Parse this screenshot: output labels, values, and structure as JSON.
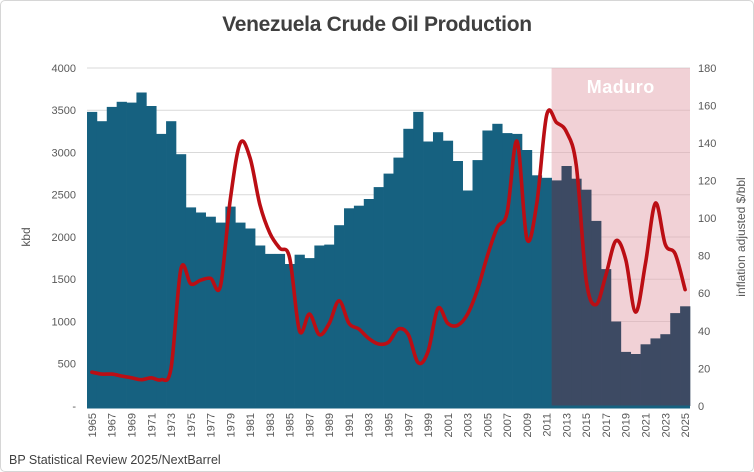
{
  "chart_data": {
    "type": "combo-bar-line",
    "title": "Venezuela Crude Oil Production",
    "source_note": "BP Statistical Review 2025/NextBarrel",
    "x": [
      1965,
      1966,
      1967,
      1968,
      1969,
      1970,
      1971,
      1972,
      1973,
      1974,
      1975,
      1976,
      1977,
      1978,
      1979,
      1980,
      1981,
      1982,
      1983,
      1984,
      1985,
      1986,
      1987,
      1988,
      1989,
      1990,
      1991,
      1992,
      1993,
      1994,
      1995,
      1996,
      1997,
      1998,
      1999,
      2000,
      2001,
      2002,
      2003,
      2004,
      2005,
      2006,
      2007,
      2008,
      2009,
      2010,
      2011,
      2012,
      2013,
      2014,
      2015,
      2016,
      2017,
      2018,
      2019,
      2020,
      2021,
      2022,
      2023,
      2024,
      2025
    ],
    "x_tick_labels": [
      "1965",
      "1967",
      "1969",
      "1971",
      "1973",
      "1975",
      "1977",
      "1979",
      "1981",
      "1983",
      "1985",
      "1987",
      "1989",
      "1991",
      "1993",
      "1995",
      "1997",
      "1999",
      "2001",
      "2003",
      "2005",
      "2007",
      "2009",
      "2011",
      "2013",
      "2015",
      "2017",
      "2019",
      "2021",
      "2023",
      "2025"
    ],
    "series": [
      {
        "name": "Crude oil production",
        "type": "bar",
        "axis": "left",
        "unit": "kbd",
        "values": [
          3480,
          3370,
          3540,
          3600,
          3590,
          3710,
          3550,
          3220,
          3370,
          2980,
          2350,
          2290,
          2240,
          2170,
          2360,
          2170,
          2100,
          1900,
          1800,
          1800,
          1680,
          1790,
          1750,
          1900,
          1910,
          2140,
          2340,
          2370,
          2450,
          2590,
          2750,
          2940,
          3280,
          3480,
          3130,
          3240,
          3140,
          2900,
          2550,
          2910,
          3260,
          3340,
          3230,
          3220,
          3030,
          2730,
          2700,
          2670,
          2840,
          2690,
          2560,
          2190,
          1620,
          1000,
          640,
          615,
          730,
          800,
          850,
          1100,
          1180
        ]
      },
      {
        "name": "Inflation adjusted oil price",
        "type": "line",
        "axis": "right",
        "unit": "$/bbl",
        "values": [
          18,
          17,
          17,
          16,
          15,
          14,
          15,
          14,
          20,
          73,
          65,
          67,
          68,
          64,
          110,
          140,
          132,
          107,
          92,
          84,
          79,
          40,
          49,
          38,
          44,
          56,
          44,
          41,
          36,
          33,
          34,
          41,
          38,
          23,
          29,
          52,
          44,
          43,
          49,
          62,
          80,
          95,
          103,
          141,
          89,
          108,
          155,
          151,
          146,
          128,
          67,
          54,
          70,
          88,
          78,
          50,
          76,
          108,
          86,
          81,
          62
        ]
      }
    ],
    "left_axis": {
      "label": "kbd",
      "min": 0,
      "max": 4000,
      "step": 500,
      "tick_values": [
        4000,
        3500,
        3000,
        2500,
        2000,
        1500,
        1000,
        500,
        0
      ],
      "tick_labels": [
        "4000",
        "3500",
        "3000",
        "2500",
        "2000",
        "1500",
        "1000",
        "500",
        "-"
      ]
    },
    "right_axis": {
      "label": "inflation adjusted $/bbl",
      "min": 0,
      "max": 180,
      "step": 20,
      "tick_values": [
        180,
        160,
        140,
        120,
        100,
        80,
        60,
        40,
        20,
        0
      ],
      "tick_labels": [
        "180",
        "160",
        "140",
        "120",
        "100",
        "80",
        "60",
        "40",
        "20",
        "0"
      ]
    },
    "annotation_region": {
      "label": "Maduro",
      "start_year": 2012,
      "end_year": 2025
    },
    "grid": "horizontal",
    "legend": "none",
    "colors": {
      "bar": "#166180",
      "bar_maduro": "#3d4a63",
      "line": "#bb0e14",
      "region_fill": "rgba(229,167,177,0.52)",
      "grid": "#d9d9d9",
      "axis_text": "#595959",
      "title_text": "#3f3f3f",
      "axis_line": "#166180",
      "maduro_text": "#ffffff"
    }
  }
}
